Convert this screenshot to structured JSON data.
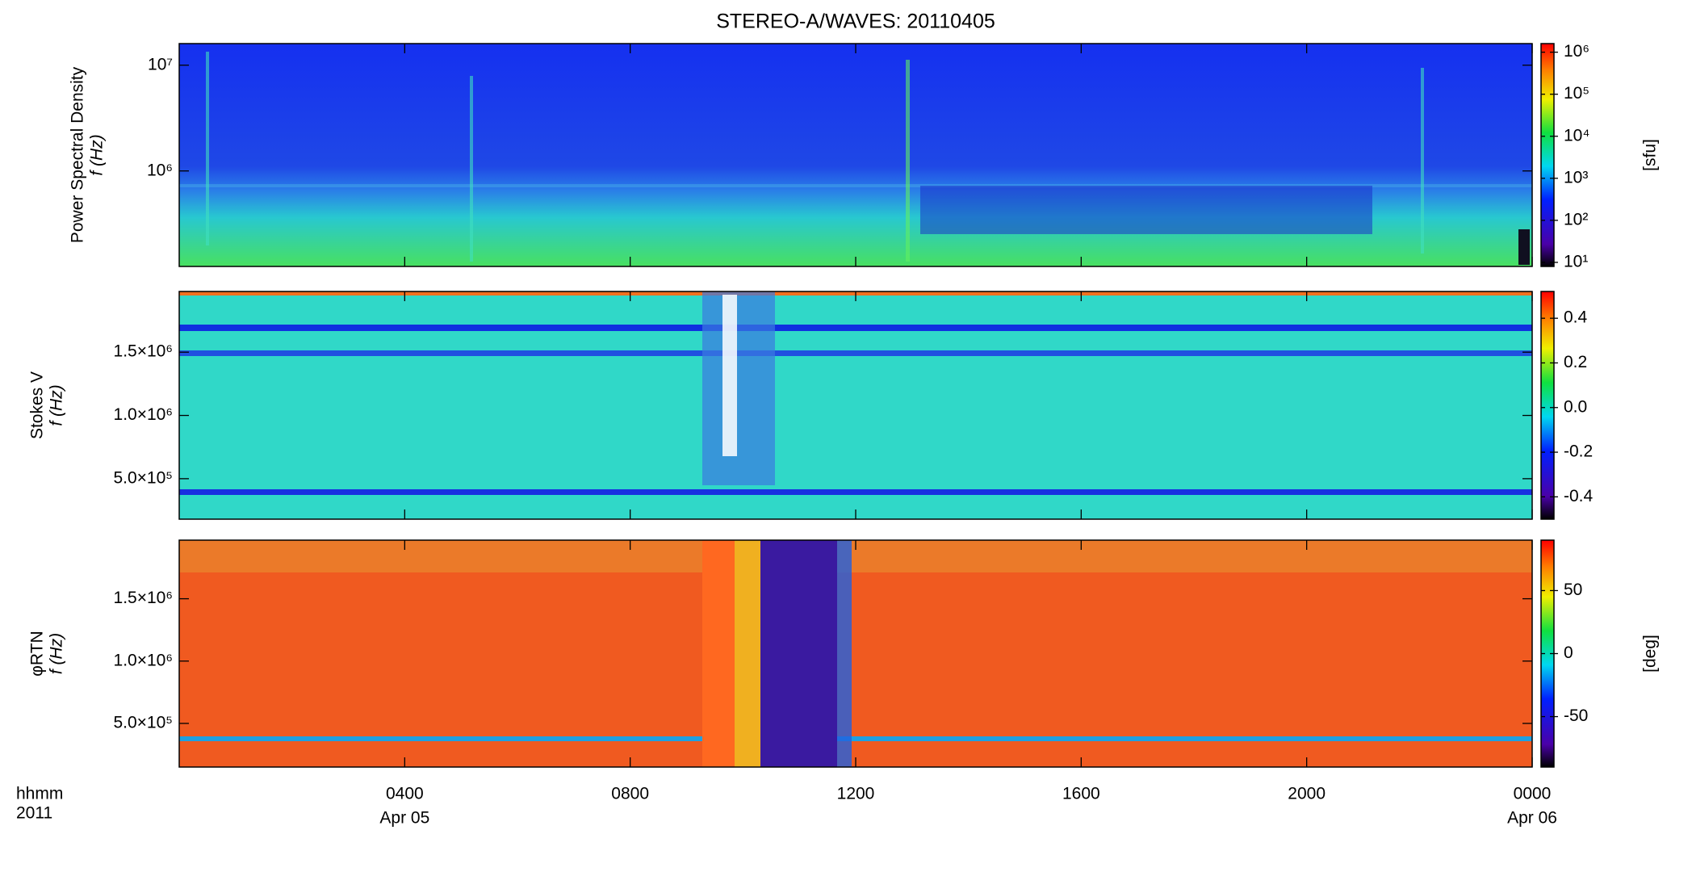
{
  "title": "STEREO-A/WAVES: 20110405",
  "x_axis": {
    "xlim": [
      0,
      24
    ],
    "xticks": [
      {
        "value": 4,
        "label": "0400"
      },
      {
        "value": 8,
        "label": "0800"
      },
      {
        "value": 12,
        "label": "1200"
      },
      {
        "value": 16,
        "label": "1600"
      },
      {
        "value": 20,
        "label": "2000"
      },
      {
        "value": 24,
        "label": "0000"
      }
    ],
    "date_labels": [
      {
        "value": 4,
        "label": "Apr 05"
      },
      {
        "value": 24,
        "label": "Apr 06"
      }
    ],
    "unit_label": "hhmm",
    "year": "2011"
  },
  "chart_data": [
    {
      "type": "heatmap",
      "colormap": "rainbow",
      "ylabel": [
        "Power Spectral Density",
        "f (Hz)"
      ],
      "ylog": true,
      "ylim": [
        125000,
        16000000
      ],
      "yticks": [
        {
          "value": 1000000,
          "label": "10⁶"
        },
        {
          "value": 10000000,
          "label": "10⁷"
        }
      ],
      "colorbar": {
        "label": "[sfu]",
        "log": true,
        "clim": [
          8,
          1600000
        ],
        "ticks": [
          {
            "value": 10,
            "label": "10¹"
          },
          {
            "value": 100,
            "label": "10²"
          },
          {
            "value": 1000,
            "label": "10³"
          },
          {
            "value": 10000,
            "label": "10⁴"
          },
          {
            "value": 100000,
            "label": "10⁵"
          },
          {
            "value": 1000000,
            "label": "10⁶"
          }
        ]
      }
    },
    {
      "type": "heatmap",
      "colormap": "rainbow",
      "ylabel": [
        "Stokes V",
        "f (Hz)"
      ],
      "ylog": false,
      "ylim": [
        180000,
        1980000
      ],
      "yticks": [
        {
          "value": 500000,
          "label": "5.0×10⁵"
        },
        {
          "value": 1000000,
          "label": "1.0×10⁶"
        },
        {
          "value": 1500000,
          "label": "1.5×10⁶"
        }
      ],
      "colorbar": {
        "log": false,
        "clim": [
          -0.5,
          0.52
        ],
        "ticks": [
          {
            "value": -0.4,
            "label": "-0.4"
          },
          {
            "value": -0.2,
            "label": "-0.2"
          },
          {
            "value": 0,
            "label": "0.0"
          },
          {
            "value": 0.2,
            "label": "0.2"
          },
          {
            "value": 0.4,
            "label": "0.4"
          }
        ]
      }
    },
    {
      "type": "heatmap",
      "colormap": "rainbow",
      "ylabel": [
        "φRTN",
        "f (Hz)"
      ],
      "ylog": false,
      "ylim": [
        150000,
        1970000
      ],
      "yticks": [
        {
          "value": 500000,
          "label": "5.0×10⁵"
        },
        {
          "value": 1000000,
          "label": "1.0×10⁶"
        },
        {
          "value": 1500000,
          "label": "1.5×10⁶"
        }
      ],
      "colorbar": {
        "label": "[deg]",
        "log": false,
        "clim": [
          -90,
          90
        ],
        "ticks": [
          -50,
          0,
          50
        ]
      }
    }
  ]
}
